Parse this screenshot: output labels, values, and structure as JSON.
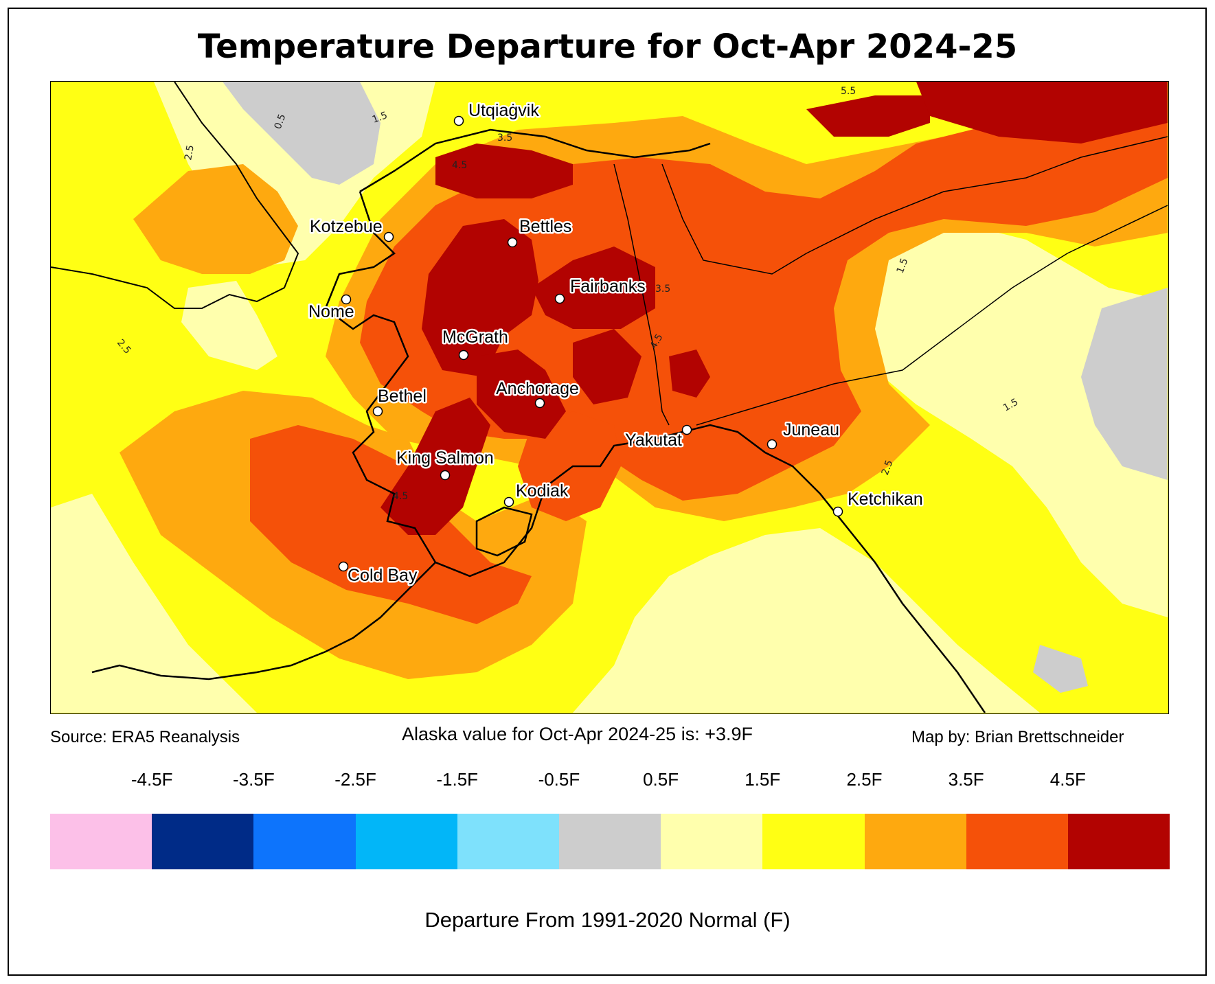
{
  "title": "Temperature Departure for Oct-Apr 2024-25",
  "footer": {
    "source": "Source: ERA5 Reanalysis",
    "alaska_value": "Alaska value for Oct-Apr 2024-25 is: +3.9F",
    "credit": "Map by: Brian Brettschneider"
  },
  "colorbar": {
    "label": "Departure From 1991-2020 Normal (F)",
    "ticks": [
      "-4.5F",
      "-3.5F",
      "-2.5F",
      "-1.5F",
      "-0.5F",
      "0.5F",
      "1.5F",
      "2.5F",
      "3.5F",
      "4.5F"
    ],
    "colors": [
      "#fcc0e8",
      "#002b87",
      "#0d74fc",
      "#02b6f8",
      "#7ee1fc",
      "#cdcdcd",
      "#ffffad",
      "#ffff14",
      "#fea90f",
      "#f55109",
      "#b20301"
    ]
  },
  "cities": [
    "Utqiaġvik",
    "Kotzebue",
    "Bettles",
    "Nome",
    "Fairbanks",
    "McGrath",
    "Bethel",
    "Anchorage",
    "King Salmon",
    "Kodiak",
    "Yakutat",
    "Juneau",
    "Ketchikan",
    "Cold Bay"
  ],
  "contour_labels": [
    "0.5",
    "1.5",
    "2.5",
    "3.5",
    "4.5",
    "5.5"
  ]
}
